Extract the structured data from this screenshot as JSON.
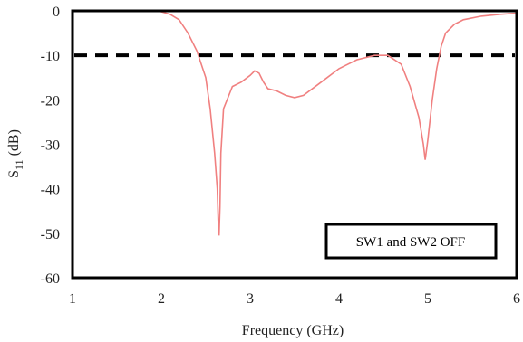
{
  "chart_data": {
    "type": "line",
    "title": "",
    "xlabel": "Frequency (GHz)",
    "ylabel": {
      "main": "S",
      "sub": "11",
      "unit": " (dB)"
    },
    "xlim": [
      1,
      6
    ],
    "ylim": [
      -60,
      0
    ],
    "x_ticks": [
      "1",
      "2",
      "3",
      "4",
      "5",
      "6"
    ],
    "y_ticks": [
      "0",
      "-10",
      "-20",
      "-30",
      "-40",
      "-50",
      "-60"
    ],
    "grid": false,
    "series": [
      {
        "color": "#f08080",
        "x": [
          1.95,
          2.0,
          2.1,
          2.2,
          2.3,
          2.4,
          2.5,
          2.55,
          2.6,
          2.63,
          2.64,
          2.65,
          2.66,
          2.67,
          2.7,
          2.8,
          2.9,
          3.0,
          3.05,
          3.1,
          3.15,
          3.2,
          3.3,
          3.4,
          3.5,
          3.6,
          3.8,
          4.0,
          4.2,
          4.4,
          4.55,
          4.7,
          4.8,
          4.9,
          4.95,
          4.97,
          5.0,
          5.05,
          5.1,
          5.15,
          5.2,
          5.3,
          5.4,
          5.6,
          5.8,
          6.0
        ],
        "y": [
          0.0,
          -0.2,
          -0.8,
          -2.0,
          -5.0,
          -9.0,
          -15.0,
          -22.0,
          -32.0,
          -40.0,
          -47.0,
          -50.5,
          -44.0,
          -32.0,
          -22.0,
          -17.0,
          -16.0,
          -14.5,
          -13.5,
          -14.0,
          -16.0,
          -17.5,
          -18.0,
          -19.0,
          -19.5,
          -19.0,
          -16.0,
          -13.0,
          -11.0,
          -10.0,
          -10.0,
          -12.0,
          -17.0,
          -24.0,
          -30.0,
          -33.5,
          -29.0,
          -20.0,
          -13.0,
          -8.0,
          -5.0,
          -3.0,
          -2.0,
          -1.2,
          -0.8,
          -0.5
        ]
      }
    ],
    "reference_line": {
      "y": -10,
      "style": "dashed",
      "color": "#000000"
    },
    "annotation": {
      "text": "SW1 and SW2 OFF",
      "placement": "lower-right"
    }
  }
}
